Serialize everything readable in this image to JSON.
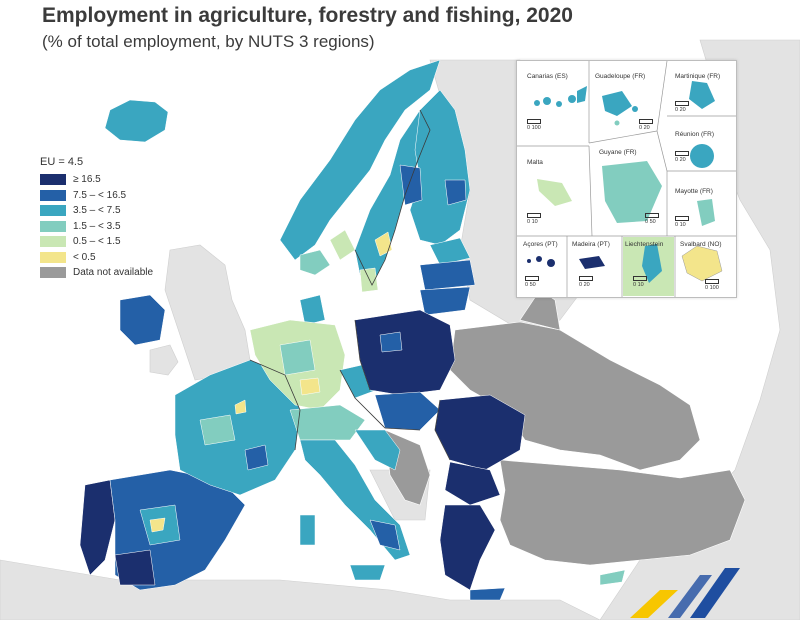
{
  "title": "Employment in agriculture, forestry and fishing, 2020",
  "subtitle": "(% of total employment, by NUTS 3 regions)",
  "legend": {
    "eu_value": "EU = 4.5",
    "items": [
      {
        "label": "≥ 16.5",
        "color": "#1b2f6e"
      },
      {
        "label": "7.5 – < 16.5",
        "color": "#2460a7"
      },
      {
        "label": "3.5 – < 7.5",
        "color": "#3aa6c0"
      },
      {
        "label": "1.5 – < 3.5",
        "color": "#82cdbf"
      },
      {
        "label": "0.5 – < 1.5",
        "color": "#c9e7b4"
      },
      {
        "label": "< 0.5",
        "color": "#f3e58b"
      },
      {
        "label": "Data not available",
        "color": "#9a9a9a"
      }
    ]
  },
  "insets": {
    "canarias": "Canarias (ES)",
    "guadeloupe": "Guadeloupe (FR)",
    "martinique": "Martinique (FR)",
    "reunion": "Réunion (FR)",
    "malta": "Malta",
    "guyane": "Guyane (FR)",
    "mayotte": "Mayotte (FR)",
    "acores": "Açores (PT)",
    "madeira": "Madeira (PT)",
    "liechtenstein": "Liechtenstein",
    "svalbard": "Svalbard (NO)"
  },
  "scales": {
    "canarias": "0   100",
    "guadeloupe": "0   20",
    "martinique": "0   20",
    "reunion": "0   20",
    "malta": "0   10",
    "guyane": "0   50",
    "mayotte": "0   10",
    "acores": "0   50",
    "madeira": "0   20",
    "liechtenstein": "0   10",
    "svalbard": "0 100"
  },
  "colors": {
    "sea": "#ffffff",
    "non_eu_land": "#e3e3e3",
    "na": "#9a9a9a",
    "border": "#3b3b3b"
  }
}
